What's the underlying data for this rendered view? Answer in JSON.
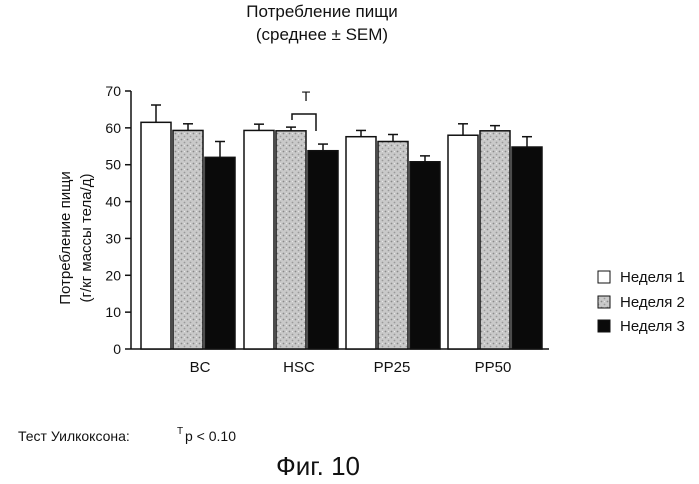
{
  "chart_data": {
    "type": "bar",
    "title": "Потребление пищи",
    "subtitle": "(среднее ± SEM)",
    "ylabel": "Потребление пищи",
    "ylabel_unit": "(г/кг массы тела/д)",
    "xlabel": "",
    "ylim": [
      0,
      70
    ],
    "yticks": [
      "0",
      "10",
      "20",
      "30",
      "40",
      "50",
      "60",
      "70"
    ],
    "categories": [
      "BC",
      "HSC",
      "PP25",
      "PP50"
    ],
    "series": [
      {
        "name": "Неделя 1",
        "fill": "#ffffff",
        "values": [
          61.5,
          59.3,
          57.6,
          58.0
        ],
        "errors": [
          4.7,
          1.7,
          1.7,
          3.1
        ]
      },
      {
        "name": "Неделя 2",
        "fill": "#c8c8c8",
        "values": [
          59.3,
          59.2,
          56.3,
          59.2
        ],
        "errors": [
          1.8,
          1.0,
          1.9,
          1.4
        ]
      },
      {
        "name": "Неделя 3",
        "fill": "#0a0a0a",
        "values": [
          52.0,
          53.8,
          50.8,
          54.8
        ],
        "errors": [
          4.3,
          1.8,
          1.6,
          2.8
        ]
      }
    ],
    "annotation": {
      "text": "T",
      "category": "HSC"
    },
    "legend": {
      "placement": "right"
    },
    "grid": false
  },
  "footnote": {
    "label": "Тест Уилкоксона:",
    "superscript": "T",
    "text": "p < 0.10"
  },
  "caption": "Фиг. 10"
}
